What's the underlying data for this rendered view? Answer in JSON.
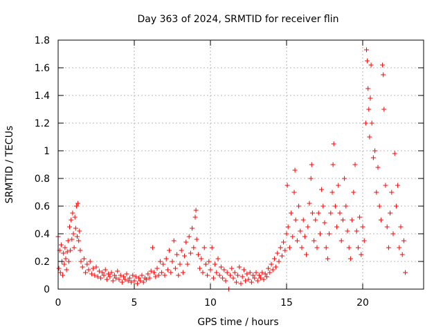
{
  "chart_data": {
    "type": "scatter",
    "title": "Day 363 of 2024, SRMTID for receiver flin",
    "xlabel": "GPS time / hours",
    "ylabel": "SRMTID / TECUs",
    "xlim": [
      0,
      24
    ],
    "ylim": [
      0,
      1.8
    ],
    "x_ticks": [
      0,
      5,
      10,
      15,
      20
    ],
    "x_tick_labels": [
      "0",
      "5",
      "10",
      "15",
      "20"
    ],
    "y_ticks": [
      0,
      0.2,
      0.4,
      0.6,
      0.8,
      1.0,
      1.2,
      1.4,
      1.6,
      1.8
    ],
    "y_tick_labels": [
      "0",
      "0.2",
      "0.4",
      "0.6",
      "0.8",
      "1",
      "1.2",
      "1.4",
      "1.6",
      "1.8"
    ],
    "grid": true,
    "marker": "plus",
    "series_color": "#ff0000",
    "series": [
      {
        "name": "SRMTID",
        "points": [
          [
            0.0,
            0.38
          ],
          [
            0.05,
            0.15
          ],
          [
            0.1,
            0.28
          ],
          [
            0.15,
            0.12
          ],
          [
            0.2,
            0.32
          ],
          [
            0.25,
            0.2
          ],
          [
            0.3,
            0.1
          ],
          [
            0.35,
            0.26
          ],
          [
            0.4,
            0.18
          ],
          [
            0.45,
            0.3
          ],
          [
            0.5,
            0.22
          ],
          [
            0.55,
            0.14
          ],
          [
            0.6,
            0.27
          ],
          [
            0.65,
            0.35
          ],
          [
            0.7,
            0.2
          ],
          [
            0.75,
            0.45
          ],
          [
            0.8,
            0.28
          ],
          [
            0.85,
            0.5
          ],
          [
            0.9,
            0.36
          ],
          [
            0.95,
            0.55
          ],
          [
            1.0,
            0.4
          ],
          [
            1.05,
            0.3
          ],
          [
            1.1,
            0.52
          ],
          [
            1.15,
            0.44
          ],
          [
            1.2,
            0.6
          ],
          [
            1.25,
            0.38
          ],
          [
            1.3,
            0.62
          ],
          [
            1.35,
            0.35
          ],
          [
            1.4,
            0.42
          ],
          [
            1.45,
            0.28
          ],
          [
            1.5,
            0.2
          ],
          [
            1.6,
            0.16
          ],
          [
            1.7,
            0.22
          ],
          [
            1.8,
            0.12
          ],
          [
            1.9,
            0.18
          ],
          [
            2.0,
            0.14
          ],
          [
            2.1,
            0.2
          ],
          [
            2.2,
            0.11
          ],
          [
            2.3,
            0.15
          ],
          [
            2.4,
            0.1
          ],
          [
            2.5,
            0.16
          ],
          [
            2.6,
            0.09
          ],
          [
            2.7,
            0.13
          ],
          [
            2.8,
            0.08
          ],
          [
            2.9,
            0.12
          ],
          [
            3.0,
            0.1
          ],
          [
            3.1,
            0.14
          ],
          [
            3.2,
            0.07
          ],
          [
            3.3,
            0.11
          ],
          [
            3.4,
            0.09
          ],
          [
            3.5,
            0.12
          ],
          [
            3.6,
            0.06
          ],
          [
            3.7,
            0.1
          ],
          [
            3.8,
            0.08
          ],
          [
            3.9,
            0.13
          ],
          [
            4.0,
            0.07
          ],
          [
            4.1,
            0.1
          ],
          [
            4.2,
            0.05
          ],
          [
            4.3,
            0.09
          ],
          [
            4.4,
            0.07
          ],
          [
            4.5,
            0.11
          ],
          [
            4.6,
            0.06
          ],
          [
            4.7,
            0.08
          ],
          [
            4.8,
            0.05
          ],
          [
            4.9,
            0.1
          ],
          [
            5.0,
            0.06
          ],
          [
            5.1,
            0.09
          ],
          [
            5.2,
            0.04
          ],
          [
            5.3,
            0.08
          ],
          [
            5.4,
            0.06
          ],
          [
            5.5,
            0.1
          ],
          [
            5.6,
            0.05
          ],
          [
            5.7,
            0.08
          ],
          [
            5.8,
            0.07
          ],
          [
            5.9,
            0.11
          ],
          [
            6.0,
            0.08
          ],
          [
            6.1,
            0.13
          ],
          [
            6.2,
            0.3
          ],
          [
            6.3,
            0.12
          ],
          [
            6.4,
            0.09
          ],
          [
            6.5,
            0.15
          ],
          [
            6.6,
            0.1
          ],
          [
            6.7,
            0.2
          ],
          [
            6.8,
            0.12
          ],
          [
            6.9,
            0.18
          ],
          [
            7.0,
            0.1
          ],
          [
            7.1,
            0.22
          ],
          [
            7.2,
            0.14
          ],
          [
            7.3,
            0.28
          ],
          [
            7.4,
            0.12
          ],
          [
            7.5,
            0.2
          ],
          [
            7.6,
            0.35
          ],
          [
            7.7,
            0.15
          ],
          [
            7.8,
            0.25
          ],
          [
            7.9,
            0.1
          ],
          [
            8.0,
            0.18
          ],
          [
            8.1,
            0.28
          ],
          [
            8.2,
            0.12
          ],
          [
            8.3,
            0.24
          ],
          [
            8.4,
            0.34
          ],
          [
            8.5,
            0.18
          ],
          [
            8.6,
            0.38
          ],
          [
            8.7,
            0.26
          ],
          [
            8.8,
            0.44
          ],
          [
            8.9,
            0.3
          ],
          [
            9.0,
            0.52
          ],
          [
            9.05,
            0.57
          ],
          [
            9.1,
            0.36
          ],
          [
            9.2,
            0.25
          ],
          [
            9.3,
            0.15
          ],
          [
            9.4,
            0.22
          ],
          [
            9.5,
            0.12
          ],
          [
            9.6,
            0.3
          ],
          [
            9.7,
            0.18
          ],
          [
            9.8,
            0.1
          ],
          [
            9.9,
            0.2
          ],
          [
            10.0,
            0.14
          ],
          [
            10.1,
            0.3
          ],
          [
            10.2,
            0.08
          ],
          [
            10.3,
            0.18
          ],
          [
            10.4,
            0.12
          ],
          [
            10.5,
            0.22
          ],
          [
            10.6,
            0.1
          ],
          [
            10.7,
            0.16
          ],
          [
            10.8,
            0.08
          ],
          [
            10.9,
            0.14
          ],
          [
            11.0,
            0.06
          ],
          [
            11.1,
            0.12
          ],
          [
            11.2,
            0.0
          ],
          [
            11.3,
            0.1
          ],
          [
            11.4,
            0.15
          ],
          [
            11.5,
            0.08
          ],
          [
            11.6,
            0.12
          ],
          [
            11.7,
            0.05
          ],
          [
            11.8,
            0.1
          ],
          [
            11.9,
            0.16
          ],
          [
            12.0,
            0.04
          ],
          [
            12.1,
            0.09
          ],
          [
            12.2,
            0.14
          ],
          [
            12.3,
            0.06
          ],
          [
            12.4,
            0.11
          ],
          [
            12.5,
            0.07
          ],
          [
            12.6,
            0.12
          ],
          [
            12.7,
            0.05
          ],
          [
            12.8,
            0.1
          ],
          [
            12.9,
            0.08
          ],
          [
            13.0,
            0.12
          ],
          [
            13.1,
            0.06
          ],
          [
            13.2,
            0.1
          ],
          [
            13.3,
            0.08
          ],
          [
            13.4,
            0.12
          ],
          [
            13.5,
            0.07
          ],
          [
            13.6,
            0.11
          ],
          [
            13.7,
            0.09
          ],
          [
            13.8,
            0.15
          ],
          [
            13.9,
            0.12
          ],
          [
            14.0,
            0.18
          ],
          [
            14.1,
            0.14
          ],
          [
            14.2,
            0.22
          ],
          [
            14.3,
            0.16
          ],
          [
            14.4,
            0.26
          ],
          [
            14.5,
            0.2
          ],
          [
            14.6,
            0.3
          ],
          [
            14.7,
            0.24
          ],
          [
            14.8,
            0.34
          ],
          [
            14.9,
            0.28
          ],
          [
            15.0,
            0.4
          ],
          [
            15.05,
            0.75
          ],
          [
            15.1,
            0.45
          ],
          [
            15.2,
            0.3
          ],
          [
            15.3,
            0.55
          ],
          [
            15.4,
            0.38
          ],
          [
            15.5,
            0.7
          ],
          [
            15.55,
            0.86
          ],
          [
            15.6,
            0.5
          ],
          [
            15.7,
            0.35
          ],
          [
            15.8,
            0.6
          ],
          [
            15.9,
            0.42
          ],
          [
            16.0,
            0.3
          ],
          [
            16.1,
            0.5
          ],
          [
            16.2,
            0.38
          ],
          [
            16.3,
            0.25
          ],
          [
            16.4,
            0.45
          ],
          [
            16.5,
            0.62
          ],
          [
            16.6,
            0.8
          ],
          [
            16.65,
            0.9
          ],
          [
            16.7,
            0.55
          ],
          [
            16.8,
            0.35
          ],
          [
            16.9,
            0.5
          ],
          [
            17.0,
            0.3
          ],
          [
            17.1,
            0.55
          ],
          [
            17.2,
            0.4
          ],
          [
            17.3,
            0.72
          ],
          [
            17.4,
            0.6
          ],
          [
            17.5,
            0.48
          ],
          [
            17.6,
            0.3
          ],
          [
            17.7,
            0.22
          ],
          [
            17.8,
            0.4
          ],
          [
            17.9,
            0.55
          ],
          [
            18.0,
            0.7
          ],
          [
            18.05,
            0.9
          ],
          [
            18.1,
            1.05
          ],
          [
            18.2,
            0.6
          ],
          [
            18.3,
            0.45
          ],
          [
            18.4,
            0.75
          ],
          [
            18.5,
            0.55
          ],
          [
            18.6,
            0.35
          ],
          [
            18.7,
            0.5
          ],
          [
            18.8,
            0.8
          ],
          [
            18.9,
            0.6
          ],
          [
            19.0,
            0.42
          ],
          [
            19.1,
            0.3
          ],
          [
            19.2,
            0.22
          ],
          [
            19.3,
            0.5
          ],
          [
            19.4,
            0.7
          ],
          [
            19.5,
            0.9
          ],
          [
            19.6,
            0.42
          ],
          [
            19.7,
            0.3
          ],
          [
            19.8,
            0.52
          ],
          [
            19.9,
            0.25
          ],
          [
            20.0,
            0.45
          ],
          [
            20.1,
            0.35
          ],
          [
            20.2,
            1.2
          ],
          [
            20.25,
            1.73
          ],
          [
            20.3,
            1.65
          ],
          [
            20.35,
            1.45
          ],
          [
            20.4,
            1.3
          ],
          [
            20.45,
            1.1
          ],
          [
            20.5,
            1.38
          ],
          [
            20.55,
            1.62
          ],
          [
            20.6,
            1.2
          ],
          [
            20.7,
            0.95
          ],
          [
            20.8,
            1.0
          ],
          [
            20.9,
            0.7
          ],
          [
            21.0,
            0.88
          ],
          [
            21.1,
            0.6
          ],
          [
            21.2,
            0.5
          ],
          [
            21.3,
            1.62
          ],
          [
            21.35,
            1.55
          ],
          [
            21.4,
            1.3
          ],
          [
            21.5,
            0.75
          ],
          [
            21.6,
            0.45
          ],
          [
            21.7,
            0.3
          ],
          [
            21.8,
            0.55
          ],
          [
            21.9,
            0.7
          ],
          [
            22.0,
            0.4
          ],
          [
            22.1,
            0.98
          ],
          [
            22.2,
            0.6
          ],
          [
            22.3,
            0.75
          ],
          [
            22.4,
            0.3
          ],
          [
            22.5,
            0.45
          ],
          [
            22.6,
            0.25
          ],
          [
            22.7,
            0.35
          ],
          [
            22.8,
            0.12
          ]
        ]
      }
    ]
  }
}
